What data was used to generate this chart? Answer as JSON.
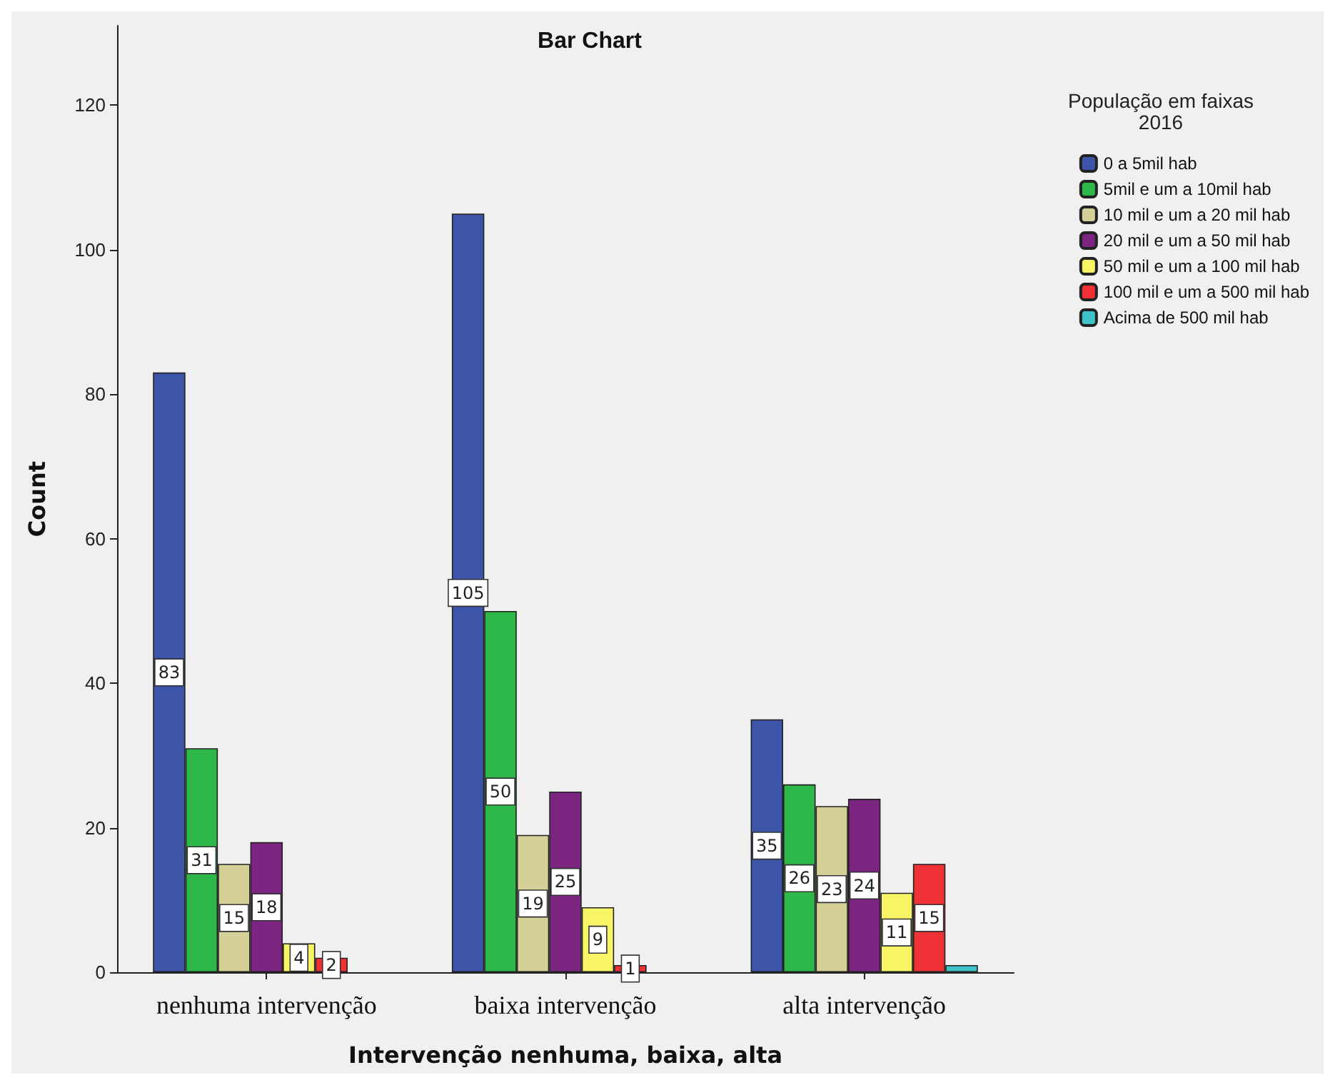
{
  "chart_data": {
    "type": "bar",
    "title": "Bar Chart",
    "xlabel": "Intervenção nenhuma, baixa, alta",
    "ylabel": "Count",
    "legend_title": "População em faixas\n2016",
    "categories": [
      "nenhuma intervenção",
      "baixa intervenção",
      "alta intervenção"
    ],
    "series": [
      {
        "name": "0 a 5mil hab",
        "color": "#3d55a8",
        "values": [
          83,
          105,
          35
        ],
        "value_labels": [
          "83",
          "105",
          "35"
        ]
      },
      {
        "name": "5mil e um a 10mil hab",
        "color": "#2eb84a",
        "values": [
          31,
          50,
          26
        ],
        "value_labels": [
          "31",
          "50",
          "26"
        ]
      },
      {
        "name": "10 mil e um a 20 mil hab",
        "color": "#d5cf98",
        "values": [
          15,
          19,
          23
        ],
        "value_labels": [
          "15",
          "19",
          "23"
        ]
      },
      {
        "name": "20 mil e um a 50 mil hab",
        "color": "#7b2580",
        "values": [
          18,
          25,
          24
        ],
        "value_labels": [
          "18",
          "25",
          "24"
        ]
      },
      {
        "name": "50 mil e um a 100 mil hab",
        "color": "#f7f565",
        "values": [
          4,
          9,
          11
        ],
        "value_labels": [
          "4",
          "9",
          "11"
        ]
      },
      {
        "name": "100 mil e um a 500 mil hab",
        "color": "#ef3034",
        "values": [
          2,
          1,
          15
        ],
        "value_labels": [
          "2",
          "1",
          "15"
        ]
      },
      {
        "name": "Acima de 500 mil hab",
        "color": "#3ec3c8",
        "values": [
          null,
          null,
          1
        ],
        "value_labels": [
          null,
          null,
          null
        ]
      }
    ],
    "ylim": [
      0,
      131
    ],
    "yticks": [
      0,
      20,
      40,
      60,
      80,
      100,
      120
    ],
    "grid": false,
    "legend": "right"
  }
}
